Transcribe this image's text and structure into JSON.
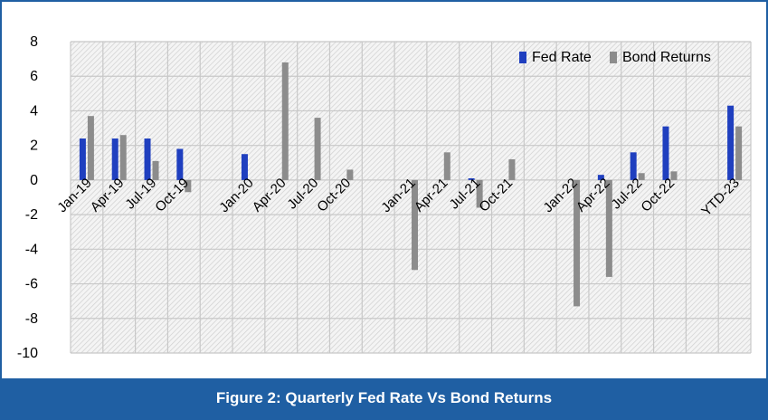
{
  "caption": "Figure 2: Quarterly Fed Rate Vs Bond Returns",
  "chart_data": {
    "type": "bar",
    "title": "",
    "xlabel": "",
    "ylabel": "",
    "ylim": [
      -10,
      8
    ],
    "yticks": [
      8,
      6,
      4,
      2,
      0,
      -2,
      -4,
      -6,
      -8,
      -10
    ],
    "grid": true,
    "legend_position": "top-right",
    "categories": [
      "Jan-19",
      "Apr-19",
      "Jul-19",
      "Oct-19",
      "",
      "Jan-20",
      "Apr-20",
      "Jul-20",
      "Oct-20",
      "",
      "Jan-21",
      "Apr-21",
      "Jul-21",
      "Oct-21",
      "",
      "Jan-22",
      "Apr-22",
      "Jul-22",
      "Oct-22",
      "",
      "YTD-23"
    ],
    "series": [
      {
        "name": "Fed Rate",
        "color": "#1f3fbf",
        "values": [
          2.4,
          2.4,
          2.4,
          1.8,
          0,
          1.5,
          0,
          0,
          0,
          0,
          0,
          0,
          0.1,
          0,
          0,
          0,
          0.3,
          1.6,
          3.1,
          0,
          4.3
        ]
      },
      {
        "name": "Bond Returns",
        "color": "#8c8c8c",
        "values": [
          3.7,
          2.6,
          1.1,
          -0.7,
          0,
          0,
          6.8,
          3.6,
          0.6,
          0,
          -5.2,
          1.6,
          -1.6,
          1.2,
          0,
          -7.3,
          -5.6,
          0.4,
          0.5,
          0,
          3.1
        ]
      }
    ]
  }
}
